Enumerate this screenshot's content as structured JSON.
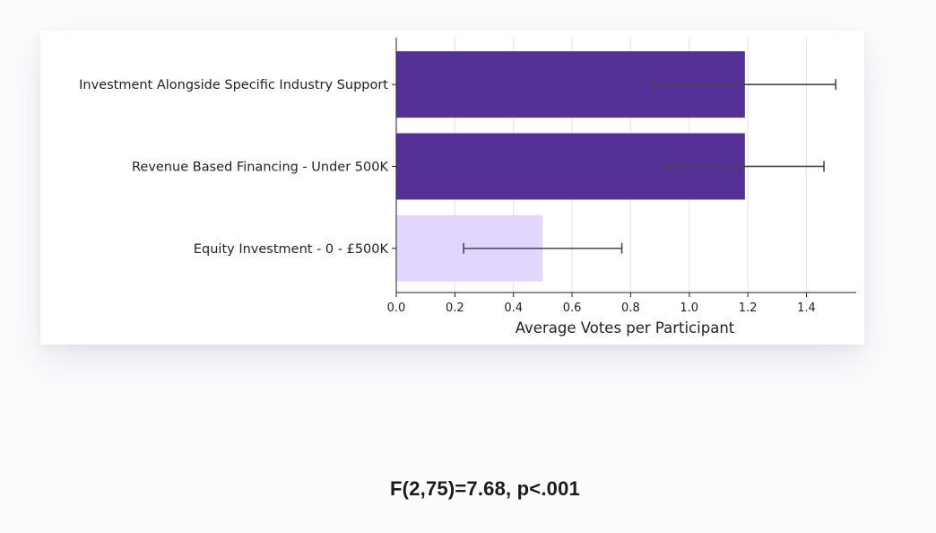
{
  "chart_data": {
    "type": "bar",
    "orientation": "horizontal",
    "categories": [
      "Investment Alongside Specific Industry Support",
      "Revenue Based Financing - Under 500K",
      "Equity Investment - 0 - £500K"
    ],
    "values": [
      1.19,
      1.19,
      0.5
    ],
    "error_low": [
      0.88,
      0.92,
      0.23
    ],
    "error_high": [
      1.5,
      1.46,
      0.77
    ],
    "bar_colors": [
      "#553096",
      "#553096",
      "#e3d6fe"
    ],
    "error_color": "#4a4458",
    "xlabel": "Average Votes per Participant",
    "ylabel": "",
    "title": "",
    "xlim": [
      0,
      1.57
    ],
    "xticks": [
      0.0,
      0.2,
      0.4,
      0.6,
      0.8,
      1.0,
      1.2,
      1.4
    ],
    "xtick_labels": [
      "0.0",
      "0.2",
      "0.4",
      "0.6",
      "0.8",
      "1.0",
      "1.2",
      "1.4"
    ],
    "grid": "vertical",
    "legend": "none"
  },
  "caption": {
    "text": "F(2,75)=7.68, p<.001"
  }
}
